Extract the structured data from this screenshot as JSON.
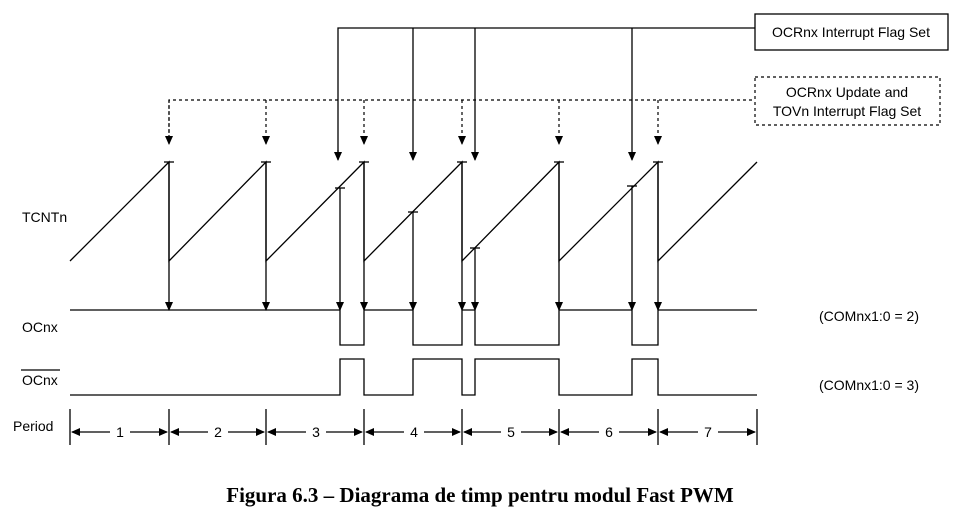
{
  "labels": {
    "interrupt_flag_box": "OCRnx Interrupt Flag Set",
    "update_box_line1": "OCRnx Update and",
    "update_box_line2": "TOVn Interrupt Flag Set",
    "tcnt": "TCNTn",
    "ocnx": "OCnx",
    "ocnx_inverted": "OCnx",
    "com2": "(COMnx1:0 = 2)",
    "com3": "(COMnx1:0 = 3)",
    "period": "Period",
    "periods": [
      "1",
      "2",
      "3",
      "4",
      "5",
      "6",
      "7"
    ]
  },
  "caption": "Figura 6.3 – Diagrama de timp pentru modul Fast PWM"
}
